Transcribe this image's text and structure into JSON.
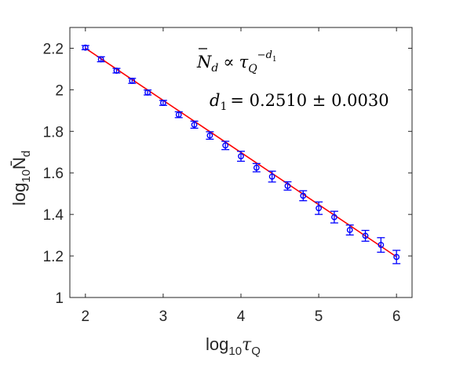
{
  "chart_data": {
    "type": "scatter",
    "x_ticks": [
      2,
      3,
      4,
      5,
      6
    ],
    "y_ticks": [
      1,
      1.2,
      1.4,
      1.6,
      1.8,
      2,
      2.2
    ],
    "xlim": [
      1.8,
      6.2
    ],
    "ylim": [
      1.0,
      2.3
    ],
    "xlabel": {
      "base": "log",
      "sub": "10",
      "main": "τ",
      "main_sub": "Q"
    },
    "ylabel": {
      "base": "log",
      "sub": "10",
      "main": "N̄",
      "main_sub": "d"
    },
    "grid": false,
    "series": [
      {
        "marker": "circle",
        "color": "#0000ff",
        "x": [
          2.0,
          2.2,
          2.4,
          2.6,
          2.8,
          3.0,
          3.2,
          3.4,
          3.6,
          3.8,
          4.0,
          4.2,
          4.4,
          4.6,
          4.8,
          5.0,
          5.2,
          5.4,
          5.6,
          5.8,
          6.0
        ],
        "y": [
          2.203,
          2.147,
          2.092,
          2.043,
          1.987,
          1.937,
          1.88,
          1.832,
          1.78,
          1.732,
          1.68,
          1.625,
          1.582,
          1.537,
          1.49,
          1.43,
          1.387,
          1.325,
          1.297,
          1.253,
          1.195
        ],
        "err": [
          0.01,
          0.012,
          0.011,
          0.012,
          0.012,
          0.012,
          0.014,
          0.017,
          0.018,
          0.02,
          0.024,
          0.02,
          0.026,
          0.02,
          0.024,
          0.03,
          0.028,
          0.024,
          0.026,
          0.035,
          0.032
        ]
      },
      {
        "type": "line",
        "color": "#ff0000",
        "x": [
          2.0,
          6.0
        ],
        "y": [
          2.2,
          1.196
        ]
      }
    ],
    "annotations": {
      "line1": {
        "lhs": "N",
        "lhs_sub": "d",
        "rel": "∝",
        "rhs": "τ",
        "rhs_sub": "Q",
        "rhs_sup": "−d",
        "rhs_sup_sub": "1"
      },
      "line2": {
        "lhs": "d",
        "lhs_sub": "1",
        "rhs": "= 0.2510 ± 0.0030"
      }
    }
  }
}
